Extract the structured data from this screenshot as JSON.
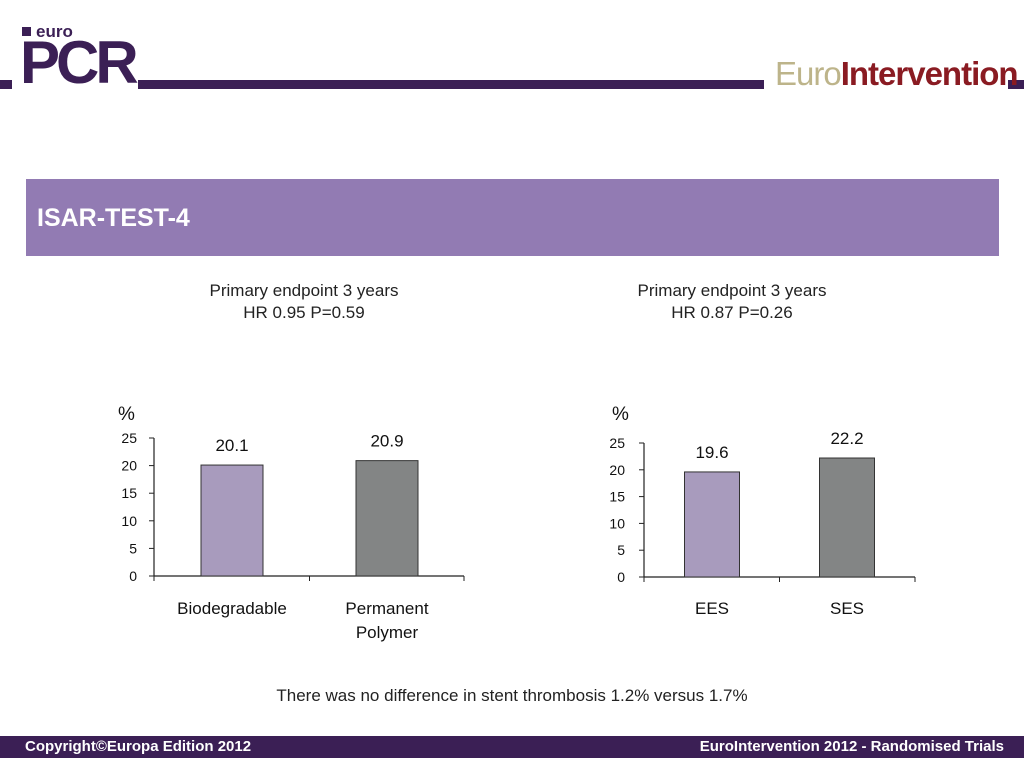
{
  "header": {
    "logo_small": "euro",
    "logo_main": "PCR",
    "brand_part1": "Euro",
    "brand_part2": "Intervention"
  },
  "title": "ISAR-TEST-4",
  "colors": {
    "purple_dark": "#3b1f55",
    "band": "#927bb3",
    "bar_light": "#a89bbd",
    "bar_dark": "#838585"
  },
  "chart_data": [
    {
      "type": "bar",
      "title": "Primary endpoint 3 years",
      "subtitle": "HR 0.95 P=0.59",
      "ylabel": "%",
      "ylim": [
        0,
        25
      ],
      "yticks": [
        0,
        5,
        10,
        15,
        20,
        25
      ],
      "categories": [
        "Biodegradable",
        "Permanent Polymer"
      ],
      "category_lines": [
        [
          "Biodegradable"
        ],
        [
          "Permanent",
          "Polymer"
        ]
      ],
      "values": [
        20.1,
        20.9
      ],
      "value_labels": [
        "20.1",
        "20.9"
      ],
      "bar_colors": [
        "#a89bbd",
        "#838585"
      ],
      "grid": false
    },
    {
      "type": "bar",
      "title": "Primary endpoint 3 years",
      "subtitle": "HR 0.87 P=0.26",
      "ylabel": "%",
      "ylim": [
        0,
        25
      ],
      "yticks": [
        0,
        5,
        10,
        15,
        20,
        25
      ],
      "categories": [
        "EES",
        "SES"
      ],
      "category_lines": [
        [
          "EES"
        ],
        [
          "SES"
        ]
      ],
      "values": [
        19.6,
        22.2
      ],
      "value_labels": [
        "19.6",
        "22.2"
      ],
      "bar_colors": [
        "#a89bbd",
        "#838585"
      ],
      "grid": false
    }
  ],
  "footnote": "There was no difference in stent thrombosis 1.2% versus 1.7%",
  "footer": {
    "left": "Copyright©Europa Edition 2012",
    "right": "EuroIntervention 2012 - Randomised Trials"
  }
}
